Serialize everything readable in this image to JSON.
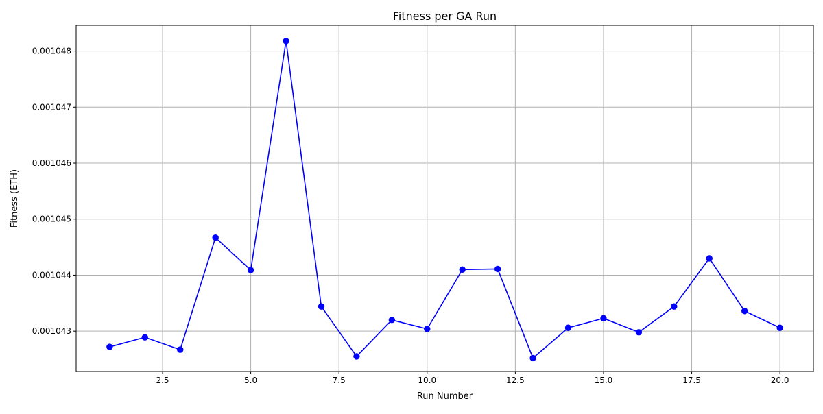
{
  "chart_data": {
    "type": "line",
    "title": "Fitness per GA Run",
    "xlabel": "Run Number",
    "ylabel": "Fitness (ETH)",
    "xlim": [
      0.05,
      20.95
    ],
    "ylim": [
      0.00104228,
      0.00104846
    ],
    "xticks": [
      2.5,
      5.0,
      7.5,
      10.0,
      12.5,
      15.0,
      17.5,
      20.0
    ],
    "xtick_labels": [
      "2.5",
      "5.0",
      "7.5",
      "10.0",
      "12.5",
      "15.0",
      "17.5",
      "20.0"
    ],
    "yticks": [
      0.001043,
      0.001044,
      0.001045,
      0.001046,
      0.001047,
      0.001048
    ],
    "ytick_labels": [
      "0.001043",
      "0.001044",
      "0.001045",
      "0.001046",
      "0.001047",
      "0.001048"
    ],
    "grid": true,
    "series": [
      {
        "color": "#0000ff",
        "marker": "circle",
        "x": [
          1,
          2,
          3,
          4,
          5,
          6,
          7,
          8,
          9,
          10,
          11,
          12,
          13,
          14,
          15,
          16,
          17,
          18,
          19,
          20
        ],
        "y": [
          0.00104272,
          0.00104289,
          0.00104267,
          0.00104467,
          0.00104409,
          0.00104818,
          0.00104344,
          0.00104255,
          0.0010432,
          0.00104304,
          0.0010441,
          0.00104411,
          0.00104252,
          0.00104306,
          0.00104323,
          0.00104298,
          0.00104344,
          0.0010443,
          0.00104336,
          0.00104306
        ]
      }
    ]
  }
}
